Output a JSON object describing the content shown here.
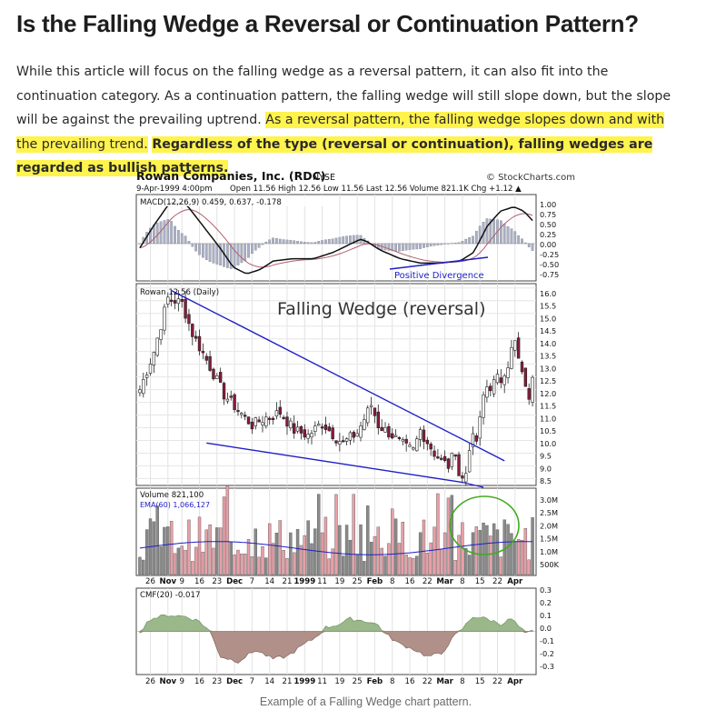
{
  "article": {
    "title": "Is the Falling Wedge a Reversal or Continuation Pattern?",
    "paragraph_plain": "While this article will focus on the falling wedge as a reversal pattern, it can also fit into the continuation category. As a continuation pattern, the falling wedge will still slope down, but the slope will be against the prevailing uptrend.",
    "paragraph_highlight": "As a reversal pattern, the falling wedge slopes down and with the prevailing trend.",
    "paragraph_highlight_bold": "Regardless of the type (reversal or continuation), falling wedges are regarded as bullish patterns.",
    "caption": "Example of a Falling Wedge chart pattern."
  },
  "chart_header": {
    "company": "Rowan Companies, Inc. (RDC)",
    "exchange": "NYSE",
    "source": "© StockCharts.com",
    "date": "9-Apr-1999 4:00pm",
    "quote": "Open 11.56 High 12.56 Low 11.56 Last 12.56 Volume 821.1K Chg +1.12 ▲"
  },
  "chart_data": [
    {
      "type": "line",
      "legend": "MACD(12,26,9) 0.459, 0.637, -0.178",
      "y_ticks": [
        "1.00",
        "0.75",
        "0.50",
        "0.25",
        "0.00",
        "-0.25",
        "-0.50",
        "-0.75"
      ],
      "ylim": [
        -0.75,
        1.0
      ],
      "annotation": "Positive Divergence"
    },
    {
      "type": "candlestick",
      "legend": "Rowan 12.56 (Daily)",
      "title": "Falling Wedge (reversal)",
      "y_ticks": [
        "16.0",
        "15.5",
        "15.0",
        "14.5",
        "14.0",
        "13.5",
        "13.0",
        "12.5",
        "12.0",
        "11.5",
        "11.0",
        "10.5",
        "10.0",
        "9.5",
        "9.0",
        "8.5"
      ],
      "ylim": [
        8.5,
        16.0
      ]
    },
    {
      "type": "bar",
      "legend": "Volume 821,100",
      "legend2": "EMA(60) 1,066,127",
      "y_ticks": [
        "3.0M",
        "2.5M",
        "2.0M",
        "1.5M",
        "1.0M",
        "500K"
      ]
    },
    {
      "type": "area",
      "legend": "CMF(20) -0.017",
      "y_ticks": [
        "0.3",
        "0.2",
        "0.1",
        "0.0",
        "-0.1",
        "-0.2",
        "-0.3"
      ],
      "ylim": [
        -0.3,
        0.3
      ]
    }
  ],
  "x_axis": [
    {
      "label": "26",
      "bold": false
    },
    {
      "label": "Nov",
      "bold": true
    },
    {
      "label": "9",
      "bold": false
    },
    {
      "label": "16",
      "bold": false
    },
    {
      "label": "23",
      "bold": false
    },
    {
      "label": "Dec",
      "bold": true
    },
    {
      "label": "7",
      "bold": false
    },
    {
      "label": "14",
      "bold": false
    },
    {
      "label": "21",
      "bold": false
    },
    {
      "label": "1999",
      "bold": true
    },
    {
      "label": "11",
      "bold": false
    },
    {
      "label": "19",
      "bold": false
    },
    {
      "label": "25",
      "bold": false
    },
    {
      "label": "Feb",
      "bold": true
    },
    {
      "label": "8",
      "bold": false
    },
    {
      "label": "16",
      "bold": false
    },
    {
      "label": "22",
      "bold": false
    },
    {
      "label": "Mar",
      "bold": true
    },
    {
      "label": "8",
      "bold": false
    },
    {
      "label": "15",
      "bold": false
    },
    {
      "label": "22",
      "bold": false
    },
    {
      "label": "Apr",
      "bold": true
    }
  ],
  "colors": {
    "highlight": "#fff34d",
    "candle_down": "#8b1a3a",
    "wedge_line": "#1e1ec8",
    "volume_bar": "#8a8a8a",
    "volume_bar_red": "#e8a0a8",
    "cmf_pos": "#9ab88a",
    "cmf_neg": "#b09088",
    "circle": "#44aa22"
  }
}
